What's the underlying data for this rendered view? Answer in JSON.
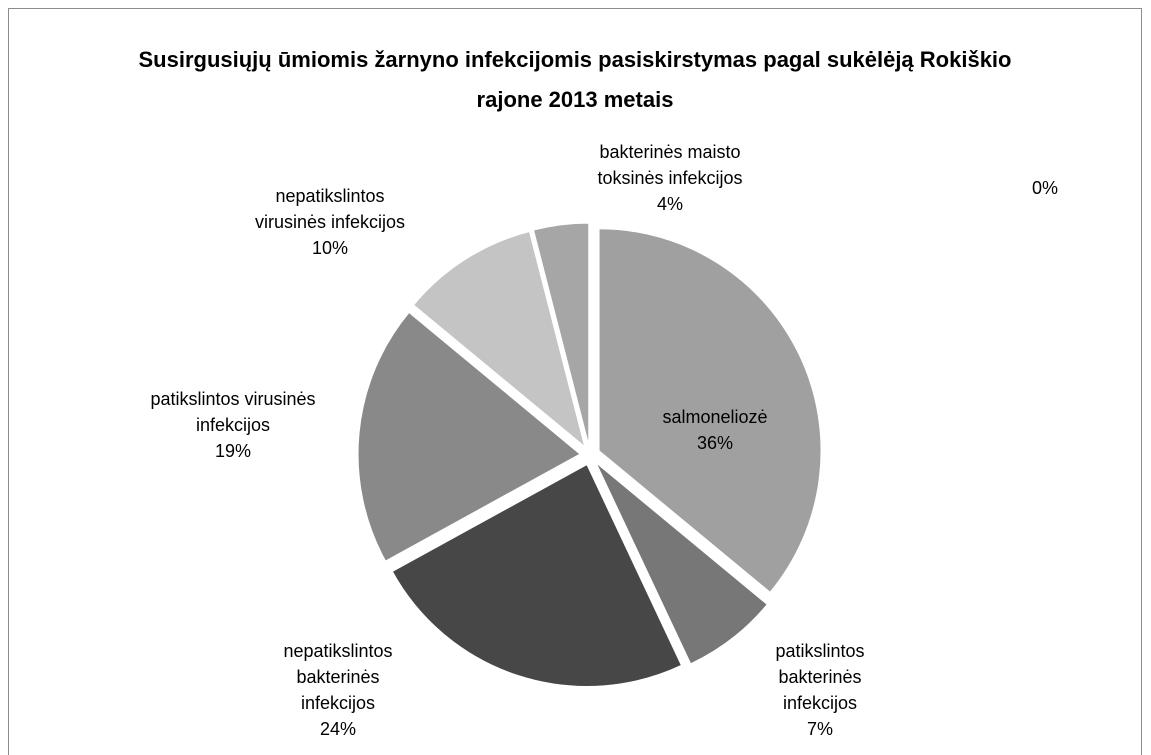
{
  "chart_data": {
    "type": "pie",
    "title": "Susirgusiųjų ūmiomis žarnyno infekcijomis pasiskirstymas pagal sukėlėją Rokiškio rajone 2013 metais",
    "categories": [
      "salmoneliozė",
      "patikslintos bakterinės infekcijos",
      "nepatikslintos bakterinės infekcijos",
      "patikslintos virusinės infekcijos",
      "nepatikslintos virusinės infekcijos",
      "bakterinės maisto toksinės infekcijos",
      null
    ],
    "values": [
      36,
      7,
      24,
      19,
      10,
      4,
      0
    ],
    "value_labels": [
      "36%",
      "7%",
      "24%",
      "19%",
      "10%",
      "4%",
      "0%"
    ],
    "colors": [
      "#a0a0a0",
      "#777777",
      "#474747",
      "#898989",
      "#c4c4c4",
      "#a6a6a6",
      "#d0d0d0"
    ]
  }
}
